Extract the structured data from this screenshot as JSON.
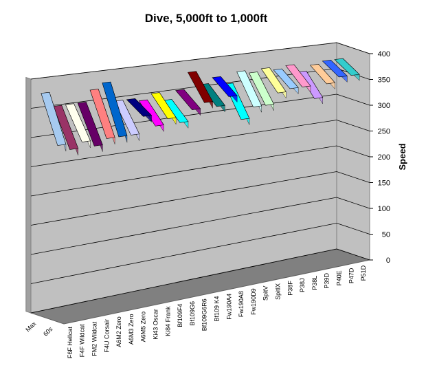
{
  "chart_data": {
    "type": "ribbon3d",
    "title": "Dive, 5,000ft to 1,000ft",
    "y_label": "Speed",
    "categories": [
      "Max",
      "60s"
    ],
    "series": [
      {
        "name": "F6F Hellcat",
        "color": "#a6caf0",
        "values": [
          380,
          300
        ]
      },
      {
        "name": "F4F Wildcat",
        "color": "#993366",
        "values": [
          355,
          290
        ]
      },
      {
        "name": "FM2 Wildcat",
        "color": "#ffffee",
        "values": [
          355,
          300
        ]
      },
      {
        "name": "F4U Corsair",
        "color": "#660066",
        "values": [
          355,
          290
        ]
      },
      {
        "name": "A6M2 Zero",
        "color": "#ff8080",
        "values": [
          375,
          300
        ]
      },
      {
        "name": "A6M3 Zero",
        "color": "#0066cc",
        "values": [
          385,
          300
        ]
      },
      {
        "name": "A6M5 Zero",
        "color": "#ccccff",
        "values": [
          350,
          300
        ]
      },
      {
        "name": "Ki43 Oscar",
        "color": "#000080",
        "values": [
          350,
          330
        ]
      },
      {
        "name": "Ki84 Frank",
        "color": "#ff00ff",
        "values": [
          345,
          310
        ]
      },
      {
        "name": "Bf109F4",
        "color": "#ffff00",
        "values": [
          355,
          320
        ]
      },
      {
        "name": "Bf109G6",
        "color": "#00ffff",
        "values": [
          340,
          310
        ]
      },
      {
        "name": "Bf109G6R6",
        "color": "#800080",
        "values": [
          355,
          330
        ]
      },
      {
        "name": "Bf109 K4",
        "color": "#800000",
        "values": [
          385,
          340
        ]
      },
      {
        "name": "Fw190A4",
        "color": "#008080",
        "values": [
          360,
          330
        ]
      },
      {
        "name": "Fw190A8",
        "color": "#0000ff",
        "values": [
          370,
          345
        ]
      },
      {
        "name": "Fw190D9",
        "color": "#00ffff",
        "values": [
          355,
          300
        ]
      },
      {
        "name": "SpitV",
        "color": "#ccffff",
        "values": [
          375,
          320
        ]
      },
      {
        "name": "SpitIX",
        "color": "#ccffcc",
        "values": [
          370,
          320
        ]
      },
      {
        "name": "P38F",
        "color": "#ffff99",
        "values": [
          375,
          340
        ]
      },
      {
        "name": "P38J",
        "color": "#99ccff",
        "values": [
          370,
          345
        ]
      },
      {
        "name": "P38L",
        "color": "#ff99cc",
        "values": [
          375,
          345
        ]
      },
      {
        "name": "P39D",
        "color": "#cc99ff",
        "values": [
          360,
          320
        ]
      },
      {
        "name": "P40E",
        "color": "#ffcc99",
        "values": [
          370,
          345
        ]
      },
      {
        "name": "P47D",
        "color": "#3366ff",
        "values": [
          375,
          355
        ]
      },
      {
        "name": "P51D",
        "color": "#33cccc",
        "values": [
          375,
          355
        ]
      }
    ],
    "ylim": [
      0,
      400
    ],
    "yticks": [
      0,
      50,
      100,
      150,
      200,
      250,
      300,
      350,
      400
    ],
    "grid": true
  }
}
